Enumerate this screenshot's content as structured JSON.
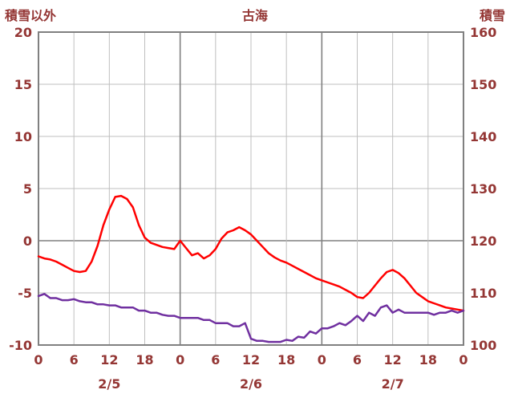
{
  "header": {
    "left_axis_title": "積雪以外",
    "title": "古海",
    "right_axis_title": "積雪"
  },
  "colors": {
    "series_red": "#ff0000",
    "series_purple": "#7030a0",
    "grid_minor": "#bfbfbf",
    "grid_major": "#808080",
    "border": "#808080",
    "label_text": "#943634"
  },
  "chart_data": {
    "type": "line",
    "title": "古海",
    "left_axis": {
      "label": "積雪以外",
      "min": -10,
      "max": 20,
      "tick_step": 5,
      "ticks": [
        20,
        15,
        10,
        5,
        0,
        -5,
        -10
      ]
    },
    "right_axis": {
      "label": "積雪",
      "min": 100,
      "max": 160,
      "tick_step": 10,
      "ticks": [
        160,
        150,
        140,
        130,
        120,
        110,
        100
      ]
    },
    "x_axis": {
      "min_hour": 0,
      "max_hour": 72,
      "tick_interval": 6,
      "tick_labels": [
        "0",
        "6",
        "12",
        "18",
        "0",
        "6",
        "12",
        "18",
        "0",
        "6",
        "12",
        "18",
        "0"
      ],
      "date_labels": [
        "2/5",
        "2/6",
        "2/7"
      ],
      "date_label_hours": [
        12,
        36,
        60
      ]
    },
    "grid": true,
    "series": [
      {
        "name": "積雪以外",
        "axis": "left",
        "color": "#ff0000",
        "values": [
          -1.5,
          -1.7,
          -1.8,
          -2.0,
          -2.3,
          -2.6,
          -2.9,
          -3.0,
          -2.9,
          -2.0,
          -0.5,
          1.5,
          3.0,
          4.2,
          4.3,
          4.0,
          3.2,
          1.5,
          0.3,
          -0.2,
          -0.4,
          -0.6,
          -0.7,
          -0.8,
          0.0,
          -0.7,
          -1.4,
          -1.2,
          -1.7,
          -1.4,
          -0.8,
          0.2,
          0.8,
          1.0,
          1.3,
          1.0,
          0.6,
          0.0,
          -0.6,
          -1.2,
          -1.6,
          -1.9,
          -2.1,
          -2.4,
          -2.7,
          -3.0,
          -3.3,
          -3.6,
          -3.8,
          -4.0,
          -4.2,
          -4.4,
          -4.7,
          -5.0,
          -5.4,
          -5.5,
          -5.0,
          -4.3,
          -3.6,
          -3.0,
          -2.8,
          -3.1,
          -3.6,
          -4.3,
          -5.0,
          -5.4,
          -5.8,
          -6.0,
          -6.2,
          -6.4,
          -6.5,
          -6.6,
          -6.7
        ]
      },
      {
        "name": "積雪",
        "axis": "right",
        "color": "#7030a0",
        "values": [
          109.4,
          109.8,
          109.0,
          109.0,
          108.6,
          108.6,
          108.8,
          108.4,
          108.2,
          108.2,
          107.8,
          107.8,
          107.6,
          107.6,
          107.2,
          107.2,
          107.2,
          106.6,
          106.6,
          106.2,
          106.2,
          105.8,
          105.6,
          105.6,
          105.2,
          105.2,
          105.2,
          105.2,
          104.8,
          104.8,
          104.2,
          104.2,
          104.2,
          103.6,
          103.6,
          104.2,
          101.2,
          100.8,
          100.8,
          100.6,
          100.6,
          100.6,
          101.0,
          100.8,
          101.6,
          101.4,
          102.6,
          102.2,
          103.2,
          103.2,
          103.6,
          104.2,
          103.8,
          104.6,
          105.6,
          104.6,
          106.2,
          105.6,
          107.2,
          107.6,
          106.2,
          106.8,
          106.2,
          106.2,
          106.2,
          106.2,
          106.2,
          105.8,
          106.2,
          106.2,
          106.6,
          106.2,
          106.6
        ]
      }
    ]
  }
}
